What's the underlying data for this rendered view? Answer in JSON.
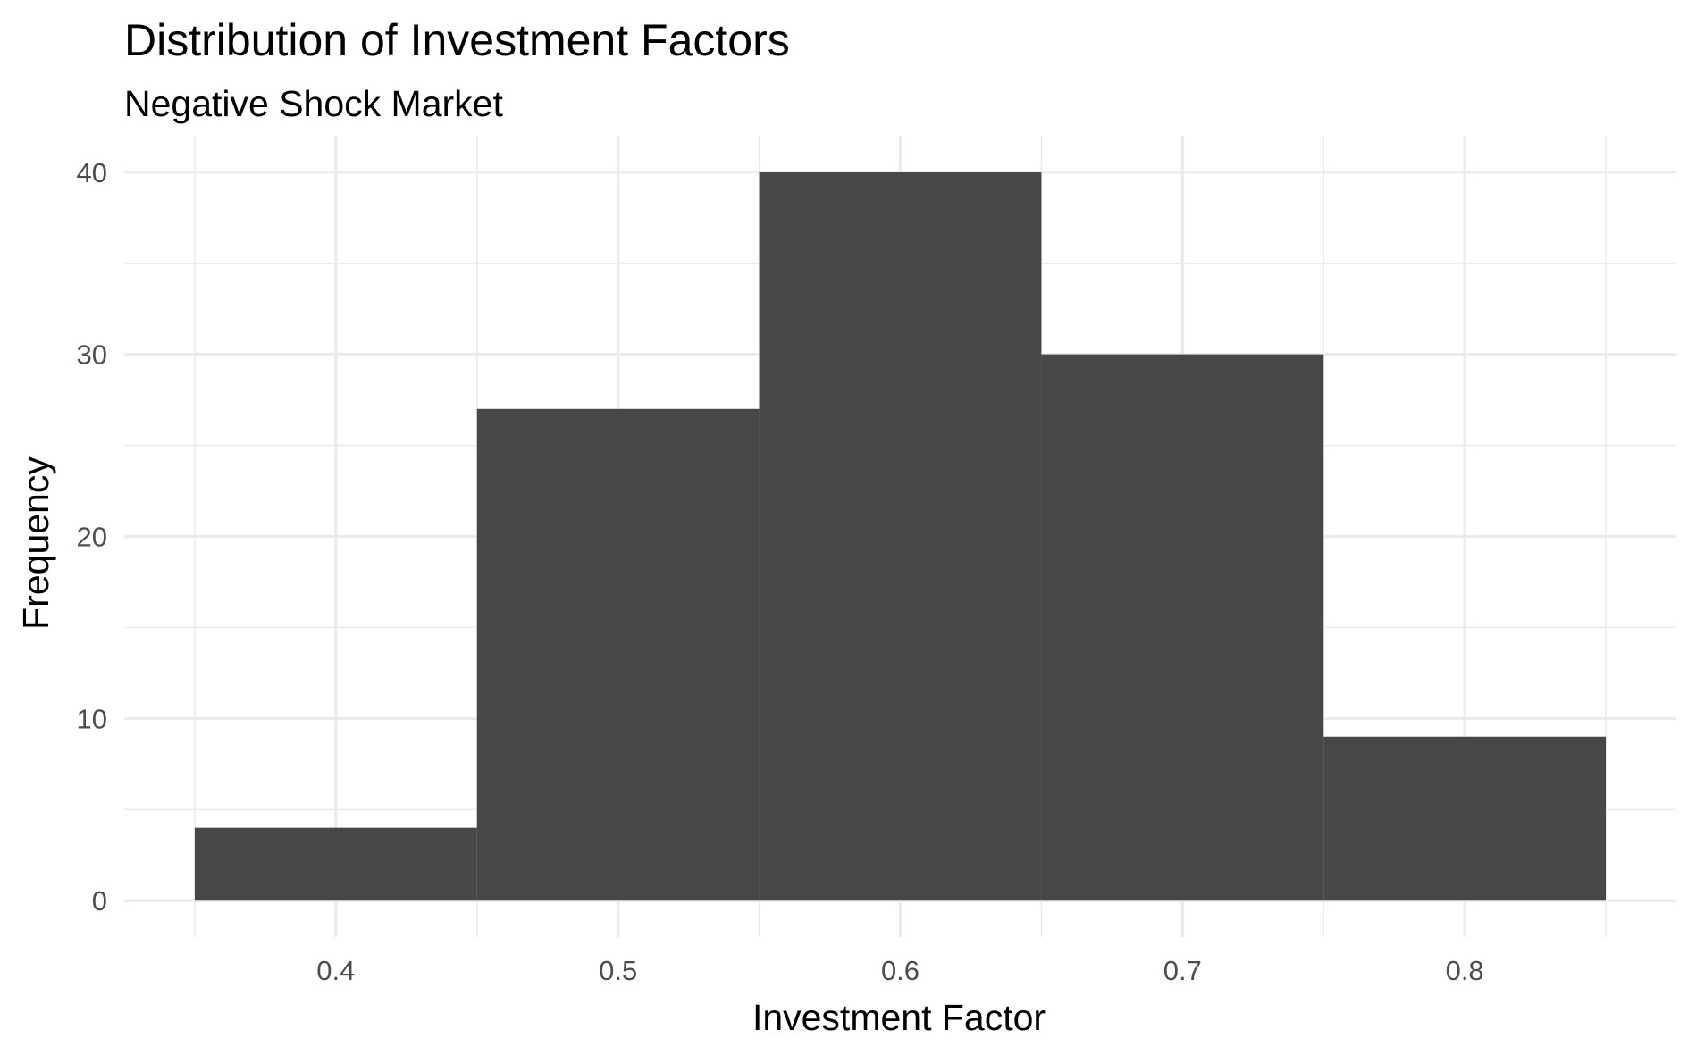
{
  "chart_data": {
    "type": "bar",
    "title": "Distribution of Investment Factors",
    "subtitle": "Negative Shock Market",
    "xlabel": "Investment Factor",
    "ylabel": "Frequency",
    "bins": [
      {
        "x0": 0.35,
        "x1": 0.45,
        "count": 4
      },
      {
        "x0": 0.45,
        "x1": 0.55,
        "count": 27
      },
      {
        "x0": 0.55,
        "x1": 0.65,
        "count": 40
      },
      {
        "x0": 0.65,
        "x1": 0.75,
        "count": 30
      },
      {
        "x0": 0.75,
        "x1": 0.85,
        "count": 9
      }
    ],
    "xlim": [
      0.325,
      0.875
    ],
    "ylim": [
      -2,
      42
    ],
    "x_ticks": [
      "0.4",
      "0.5",
      "0.6",
      "0.7",
      "0.8"
    ],
    "y_ticks": [
      "0",
      "10",
      "20",
      "30",
      "40"
    ],
    "grid": true,
    "bar_color": "#474747",
    "grid_color": "#ebebeb"
  }
}
